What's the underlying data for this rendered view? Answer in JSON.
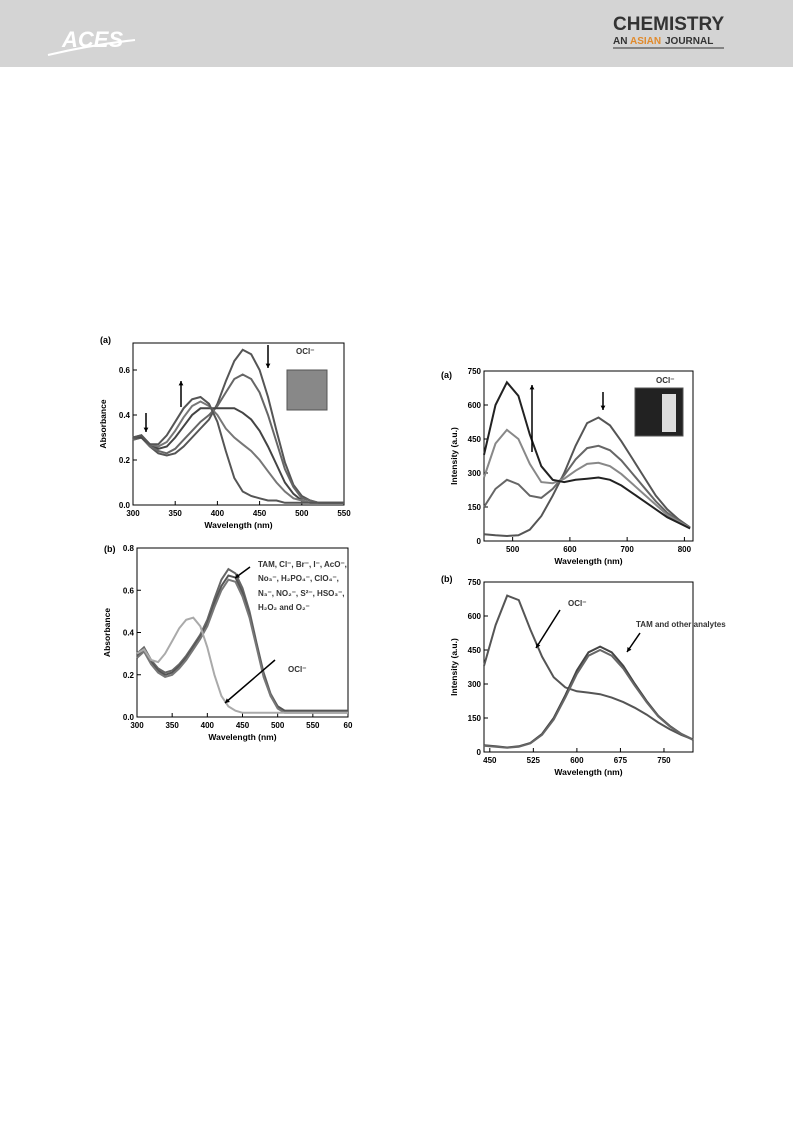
{
  "header": {
    "logo": "ACES",
    "journal": "CHEMISTRY",
    "journal_sub_1": "AN",
    "journal_sub_2": "ASIAN",
    "journal_sub_3": "JOURNAL"
  },
  "chart_data": [
    {
      "type": "line",
      "panel": "(a)",
      "x_label": "Wavelength (nm)",
      "y_label": "Absorbance",
      "annotations": [
        "OCl⁻"
      ],
      "xlim": [
        300,
        550
      ],
      "ylim": [
        0,
        0.72
      ],
      "xticks": [
        300,
        350,
        400,
        450,
        500,
        550
      ],
      "yticks": [
        {
          "value": 0,
          "label": "0.0"
        },
        {
          "value": 0.2,
          "label": "0.2"
        },
        {
          "value": 0.4,
          "label": "0.4"
        },
        {
          "value": 0.6,
          "label": "0.6"
        }
      ],
      "x": [
        300,
        310,
        320,
        330,
        340,
        350,
        360,
        370,
        380,
        390,
        400,
        410,
        420,
        430,
        440,
        450,
        460,
        470,
        480,
        490,
        500,
        510,
        520,
        530,
        540,
        550
      ],
      "series": [
        {
          "color": "#555555",
          "values": [
            0.29,
            0.3,
            0.26,
            0.23,
            0.22,
            0.23,
            0.26,
            0.3,
            0.34,
            0.38,
            0.45,
            0.55,
            0.64,
            0.69,
            0.67,
            0.6,
            0.48,
            0.33,
            0.19,
            0.09,
            0.04,
            0.02,
            0.01,
            0.01,
            0.01,
            0.01
          ]
        },
        {
          "color": "#666666",
          "values": [
            0.29,
            0.3,
            0.26,
            0.24,
            0.23,
            0.25,
            0.29,
            0.33,
            0.37,
            0.4,
            0.44,
            0.5,
            0.56,
            0.58,
            0.56,
            0.5,
            0.4,
            0.28,
            0.16,
            0.08,
            0.03,
            0.02,
            0.01,
            0.01,
            0.01,
            0.01
          ]
        },
        {
          "color": "#444444",
          "values": [
            0.3,
            0.3,
            0.27,
            0.25,
            0.26,
            0.3,
            0.35,
            0.4,
            0.43,
            0.43,
            0.43,
            0.43,
            0.43,
            0.41,
            0.38,
            0.33,
            0.26,
            0.18,
            0.1,
            0.05,
            0.02,
            0.01,
            0.01,
            0.01,
            0.01,
            0.01
          ]
        },
        {
          "color": "#777777",
          "values": [
            0.3,
            0.31,
            0.27,
            0.26,
            0.28,
            0.33,
            0.39,
            0.44,
            0.46,
            0.44,
            0.4,
            0.34,
            0.3,
            0.27,
            0.24,
            0.2,
            0.15,
            0.1,
            0.06,
            0.03,
            0.02,
            0.01,
            0.01,
            0.01,
            0.01,
            0.01
          ]
        },
        {
          "color": "#555555",
          "values": [
            0.3,
            0.31,
            0.27,
            0.27,
            0.31,
            0.37,
            0.43,
            0.47,
            0.48,
            0.45,
            0.37,
            0.24,
            0.12,
            0.06,
            0.04,
            0.03,
            0.02,
            0.02,
            0.01,
            0.01,
            0.01,
            0.01,
            0.01,
            0.01,
            0.01,
            0.01
          ]
        }
      ]
    },
    {
      "type": "line",
      "panel": "(b)",
      "x_label": "Wavelength (nm)",
      "y_label": "Absorbance",
      "annotations": [
        "TAM, Cl⁻, Br⁻, I⁻, AcO⁻,",
        "No₃⁻, H₂PO₄⁻, ClO₄⁻,",
        "N₃⁻, NO₂⁻, S²⁻, HSO₃⁻,",
        "H₂O₂ and O₂⁻",
        "OCl⁻"
      ],
      "xlim": [
        300,
        600
      ],
      "ylim": [
        0,
        0.8
      ],
      "xticks": [
        300,
        350,
        400,
        450,
        500,
        550,
        {
          "value": 600,
          "label": "60"
        }
      ],
      "yticks": [
        {
          "value": 0,
          "label": "0.0"
        },
        {
          "value": 0.2,
          "label": "0.2"
        },
        {
          "value": 0.4,
          "label": "0.4"
        },
        {
          "value": 0.6,
          "label": "0.6"
        },
        {
          "value": 0.8,
          "label": "0.8"
        }
      ],
      "x": [
        300,
        310,
        320,
        330,
        340,
        350,
        360,
        370,
        380,
        390,
        400,
        410,
        420,
        430,
        440,
        450,
        460,
        470,
        480,
        490,
        500,
        510,
        520,
        530,
        540,
        550,
        560,
        570,
        580,
        590,
        600
      ],
      "series": [
        {
          "color": "#666666",
          "values": [
            0.3,
            0.33,
            0.27,
            0.23,
            0.21,
            0.22,
            0.25,
            0.29,
            0.34,
            0.39,
            0.46,
            0.56,
            0.65,
            0.7,
            0.68,
            0.61,
            0.5,
            0.35,
            0.21,
            0.11,
            0.05,
            0.03,
            0.03,
            0.03,
            0.03,
            0.03,
            0.03,
            0.03,
            0.03,
            0.03,
            0.03
          ]
        },
        {
          "color": "#555555",
          "values": [
            0.29,
            0.32,
            0.26,
            0.22,
            0.2,
            0.21,
            0.24,
            0.28,
            0.33,
            0.38,
            0.44,
            0.54,
            0.62,
            0.67,
            0.66,
            0.59,
            0.48,
            0.34,
            0.2,
            0.1,
            0.05,
            0.03,
            0.03,
            0.03,
            0.03,
            0.03,
            0.03,
            0.03,
            0.03,
            0.03,
            0.03
          ]
        },
        {
          "color": "#777777",
          "values": [
            0.28,
            0.31,
            0.25,
            0.21,
            0.19,
            0.2,
            0.23,
            0.27,
            0.32,
            0.37,
            0.43,
            0.52,
            0.6,
            0.65,
            0.64,
            0.57,
            0.47,
            0.33,
            0.19,
            0.1,
            0.04,
            0.02,
            0.02,
            0.02,
            0.02,
            0.02,
            0.02,
            0.02,
            0.02,
            0.02,
            0.02
          ]
        },
        {
          "color": "#aaaaaa",
          "values": [
            0.3,
            0.32,
            0.27,
            0.26,
            0.3,
            0.36,
            0.42,
            0.46,
            0.47,
            0.43,
            0.33,
            0.2,
            0.1,
            0.05,
            0.03,
            0.02,
            0.02,
            0.02,
            0.02,
            0.02,
            0.02,
            0.02,
            0.02,
            0.02,
            0.02,
            0.02,
            0.02,
            0.02,
            0.02,
            0.02,
            0.02
          ]
        }
      ]
    },
    {
      "type": "line",
      "panel": "(a)",
      "x_label": "Wavelength (nm)",
      "y_label": "Intensity (a.u.)",
      "annotations": [
        "OCl⁻"
      ],
      "xlim": [
        450,
        815
      ],
      "ylim": [
        0,
        750
      ],
      "xticks": [
        500,
        600,
        700,
        800
      ],
      "yticks": [
        0,
        150,
        300,
        450,
        600,
        750
      ],
      "x": [
        450,
        470,
        490,
        510,
        530,
        550,
        570,
        590,
        610,
        630,
        650,
        670,
        690,
        710,
        730,
        750,
        770,
        790,
        810
      ],
      "series": [
        {
          "color": "#555555",
          "values": [
            30,
            25,
            22,
            25,
            50,
            110,
            200,
            300,
            420,
            520,
            545,
            510,
            440,
            360,
            280,
            200,
            140,
            95,
            60
          ]
        },
        {
          "color": "#666666",
          "values": [
            150,
            230,
            270,
            250,
            200,
            190,
            230,
            290,
            360,
            410,
            420,
            400,
            355,
            295,
            235,
            175,
            125,
            90,
            58
          ]
        },
        {
          "color": "#888888",
          "values": [
            280,
            430,
            490,
            450,
            340,
            260,
            255,
            275,
            310,
            340,
            345,
            330,
            295,
            250,
            205,
            160,
            115,
            85,
            57
          ]
        },
        {
          "color": "#222222",
          "values": [
            380,
            600,
            700,
            640,
            470,
            330,
            270,
            260,
            270,
            275,
            280,
            270,
            245,
            210,
            175,
            140,
            105,
            80,
            55
          ]
        }
      ]
    },
    {
      "type": "line",
      "panel": "(b)",
      "x_label": "Wavelength (nm)",
      "y_label": "Intensity (a.u.)",
      "annotations": [
        "OCl⁻",
        "TAM and other analytes"
      ],
      "xlim": [
        440,
        800
      ],
      "ylim": [
        0,
        750
      ],
      "xticks": [
        450,
        525,
        600,
        675,
        750
      ],
      "yticks": [
        0,
        150,
        300,
        450,
        600,
        750
      ],
      "x": [
        440,
        460,
        480,
        500,
        520,
        540,
        560,
        580,
        600,
        620,
        640,
        660,
        680,
        700,
        720,
        740,
        760,
        780,
        800
      ],
      "series": [
        {
          "color": "#555555",
          "values": [
            380,
            560,
            690,
            670,
            540,
            420,
            330,
            285,
            268,
            262,
            255,
            240,
            220,
            195,
            165,
            130,
            100,
            75,
            55
          ]
        },
        {
          "color": "#444444",
          "values": [
            30,
            25,
            20,
            25,
            40,
            80,
            150,
            250,
            360,
            440,
            465,
            440,
            380,
            300,
            225,
            160,
            115,
            80,
            55
          ]
        },
        {
          "color": "#666666",
          "values": [
            28,
            23,
            19,
            23,
            38,
            76,
            143,
            240,
            345,
            425,
            450,
            425,
            368,
            292,
            220,
            157,
            113,
            79,
            54
          ]
        }
      ]
    }
  ]
}
